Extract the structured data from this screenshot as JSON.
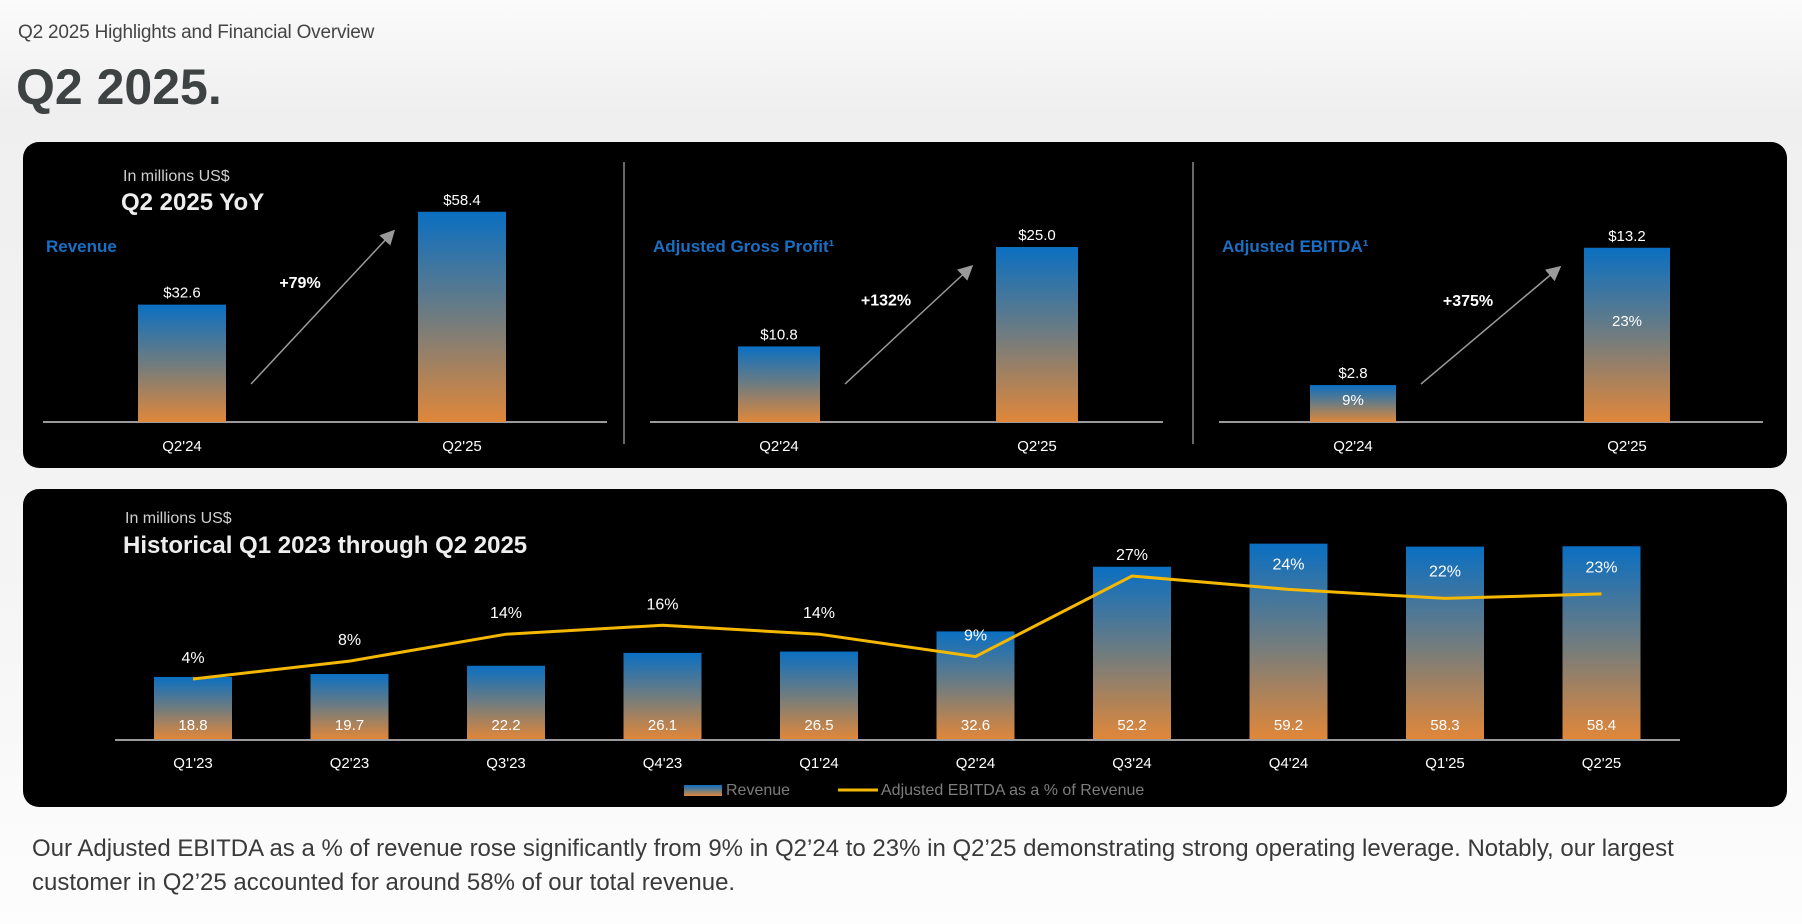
{
  "header": {
    "subtitle": "Q2 2025 Highlights and Financial Overview",
    "title": "Q2 2025."
  },
  "colors": {
    "panel_bg": "#000000",
    "bar_top": "#0a6fc2",
    "bar_bottom": "#e0873a",
    "metric_label": "#1a6fc4",
    "line": "#f5b800",
    "arrow": "#9a9a9a"
  },
  "chart_data": [
    {
      "type": "bar",
      "section_title": "Q2 2025 YoY",
      "unit_note": "In millions US$",
      "metric": "Revenue",
      "categories": [
        "Q2'24",
        "Q2'25"
      ],
      "values": [
        32.6,
        58.4
      ],
      "value_labels": [
        "$32.6",
        "$58.4"
      ],
      "growth_label": "+79%"
    },
    {
      "type": "bar",
      "metric": "Adjusted Gross Profit¹",
      "categories": [
        "Q2'24",
        "Q2'25"
      ],
      "values": [
        10.8,
        25.0
      ],
      "value_labels": [
        "$10.8",
        "$25.0"
      ],
      "growth_label": "+132%"
    },
    {
      "type": "bar",
      "metric": "Adjusted EBITDA¹",
      "categories": [
        "Q2'24",
        "Q2'25"
      ],
      "values": [
        2.8,
        13.2
      ],
      "value_labels": [
        "$2.8",
        "$13.2"
      ],
      "inner_labels": [
        "9%",
        "23%"
      ],
      "growth_label": "+375%"
    },
    {
      "type": "bar",
      "title": "Historical Q1 2023 through Q2 2025",
      "unit_note": "In millions US$",
      "categories": [
        "Q1'23",
        "Q2'23",
        "Q3'23",
        "Q4'23",
        "Q1'24",
        "Q2'24",
        "Q3'24",
        "Q4'24",
        "Q1'25",
        "Q2'25"
      ],
      "series": [
        {
          "name": "Revenue",
          "kind": "bar",
          "values": [
            18.8,
            19.7,
            22.2,
            26.1,
            26.5,
            32.6,
            52.2,
            59.2,
            58.3,
            58.4
          ]
        },
        {
          "name": "Adjusted EBITDA as a % of Revenue",
          "kind": "line",
          "values": [
            4,
            8,
            14,
            16,
            14,
            9,
            27,
            24,
            22,
            23
          ],
          "labels": [
            "4%",
            "8%",
            "14%",
            "16%",
            "14%",
            "9%",
            "27%",
            "24%",
            "22%",
            "23%"
          ]
        }
      ],
      "legend": [
        "Revenue",
        "Adjusted EBITDA as a % of Revenue"
      ],
      "legend_position": "bottom"
    }
  ],
  "footer": {
    "text": "Our Adjusted EBITDA as a % of revenue rose significantly from 9% in Q2’24 to 23% in Q2’25 demonstrating strong operating leverage. Notably, our largest customer in Q2’25 accounted for around 58% of our total revenue."
  }
}
